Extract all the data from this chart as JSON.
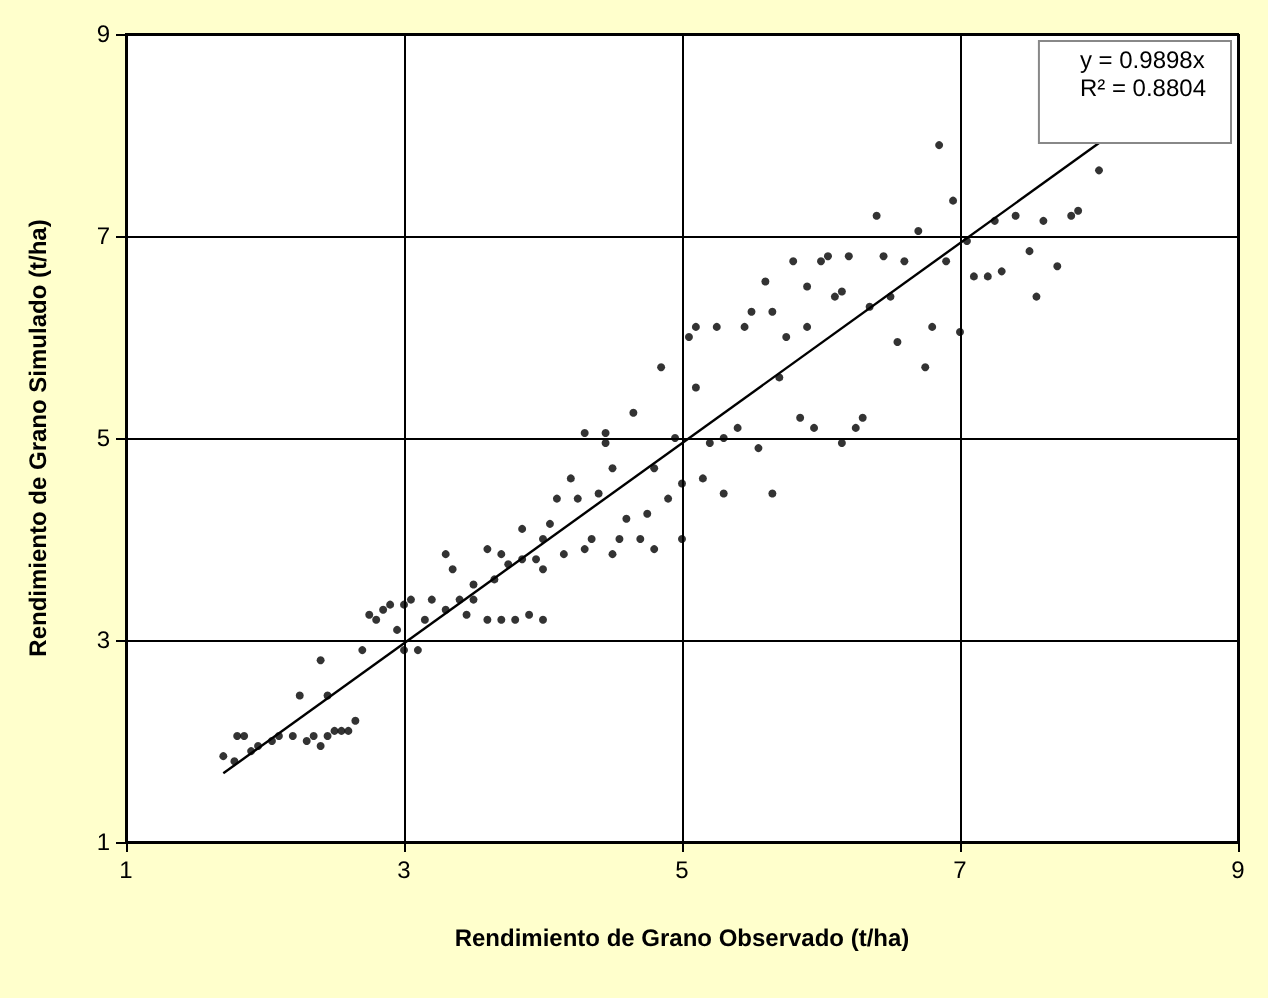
{
  "chart_data": {
    "type": "scatter",
    "xlabel": "Rendimiento de Grano Observado (t/ha)",
    "ylabel": "Rendimiento de Grano Simulado (t/ha)",
    "xlim": [
      1,
      9
    ],
    "xticks": [
      1,
      3,
      5,
      7,
      9
    ],
    "ylim": [
      1,
      9
    ],
    "yticks": [
      1,
      3,
      5,
      7,
      9
    ],
    "grid": true,
    "marker": "circle",
    "annotations": [
      "y = 0.9898x",
      "R² = 0.8804"
    ],
    "series": [
      {
        "color": "#000000",
        "x": [
          1.7,
          1.78,
          1.8,
          1.85,
          1.9,
          1.95,
          2.05,
          2.1,
          2.2,
          2.25,
          2.3,
          2.35,
          2.4,
          2.4,
          2.45,
          2.45,
          2.5,
          2.55,
          2.6,
          2.65,
          2.7,
          2.75,
          2.8,
          2.85,
          2.9,
          2.95,
          3.0,
          3.0,
          3.05,
          3.1,
          3.15,
          3.2,
          3.3,
          3.35,
          3.4,
          3.45,
          3.5,
          3.5,
          3.6,
          3.6,
          3.65,
          3.7,
          3.7,
          3.75,
          3.8,
          3.85,
          3.85,
          3.9,
          3.95,
          4.0,
          4.0,
          4.05,
          4.1,
          4.15,
          4.2,
          4.25,
          4.3,
          4.3,
          4.35,
          4.4,
          4.45,
          4.5,
          4.5,
          4.55,
          4.6,
          4.65,
          4.7,
          4.75,
          4.8,
          4.8,
          4.85,
          4.9,
          4.95,
          5.0,
          5.0,
          5.05,
          5.1,
          5.1,
          5.15,
          5.2,
          5.25,
          5.3,
          5.3,
          5.4,
          5.45,
          5.5,
          5.55,
          5.6,
          5.65,
          5.65,
          5.7,
          5.75,
          5.8,
          5.85,
          5.9,
          5.95,
          6.0,
          6.05,
          6.1,
          6.15,
          6.2,
          6.25,
          6.35,
          6.4,
          6.45,
          6.5,
          6.55,
          6.6,
          6.7,
          6.75,
          6.8,
          6.85,
          6.9,
          6.95,
          7.0,
          7.05,
          7.1,
          7.2,
          7.25,
          7.3,
          7.4,
          7.5,
          7.55,
          7.6,
          7.7,
          7.8,
          7.85,
          8.0,
          4.0,
          3.3,
          4.45,
          5.9,
          6.3,
          6.15
        ],
        "values": [
          1.85,
          1.8,
          2.05,
          2.05,
          1.9,
          1.95,
          2.0,
          2.05,
          2.05,
          2.45,
          2.0,
          2.05,
          1.95,
          2.8,
          2.05,
          2.45,
          2.1,
          2.1,
          2.1,
          2.2,
          2.9,
          3.25,
          3.2,
          3.3,
          3.35,
          3.1,
          3.35,
          2.9,
          3.4,
          2.9,
          3.2,
          3.4,
          3.3,
          3.7,
          3.4,
          3.25,
          3.55,
          3.4,
          3.2,
          3.9,
          3.6,
          3.85,
          3.2,
          3.75,
          3.2,
          3.8,
          4.1,
          3.25,
          3.8,
          4.0,
          3.7,
          4.15,
          4.4,
          3.85,
          4.6,
          4.4,
          5.05,
          3.9,
          4.0,
          4.45,
          5.05,
          3.85,
          4.7,
          4.0,
          4.2,
          5.25,
          4.0,
          4.25,
          4.7,
          3.9,
          5.7,
          4.4,
          5.0,
          4.0,
          4.55,
          6.0,
          6.1,
          5.5,
          4.6,
          4.95,
          6.1,
          5.0,
          4.45,
          5.1,
          6.1,
          6.25,
          4.9,
          6.55,
          6.25,
          4.45,
          5.6,
          6.0,
          6.75,
          5.2,
          6.5,
          5.1,
          6.75,
          6.8,
          6.4,
          4.95,
          6.8,
          5.1,
          6.3,
          7.2,
          6.8,
          6.4,
          5.95,
          6.75,
          7.05,
          5.7,
          6.1,
          7.9,
          6.75,
          7.35,
          6.05,
          6.95,
          6.6,
          6.6,
          7.15,
          6.65,
          7.2,
          6.85,
          6.4,
          7.15,
          6.7,
          7.2,
          7.25,
          7.65,
          3.2,
          3.85,
          4.95,
          6.1,
          5.2,
          6.45
        ]
      },
      {
        "type": "line",
        "color": "#000000",
        "marker": "none",
        "x": [
          1.7,
          8.0
        ],
        "values": [
          1.68,
          7.92
        ]
      }
    ]
  }
}
